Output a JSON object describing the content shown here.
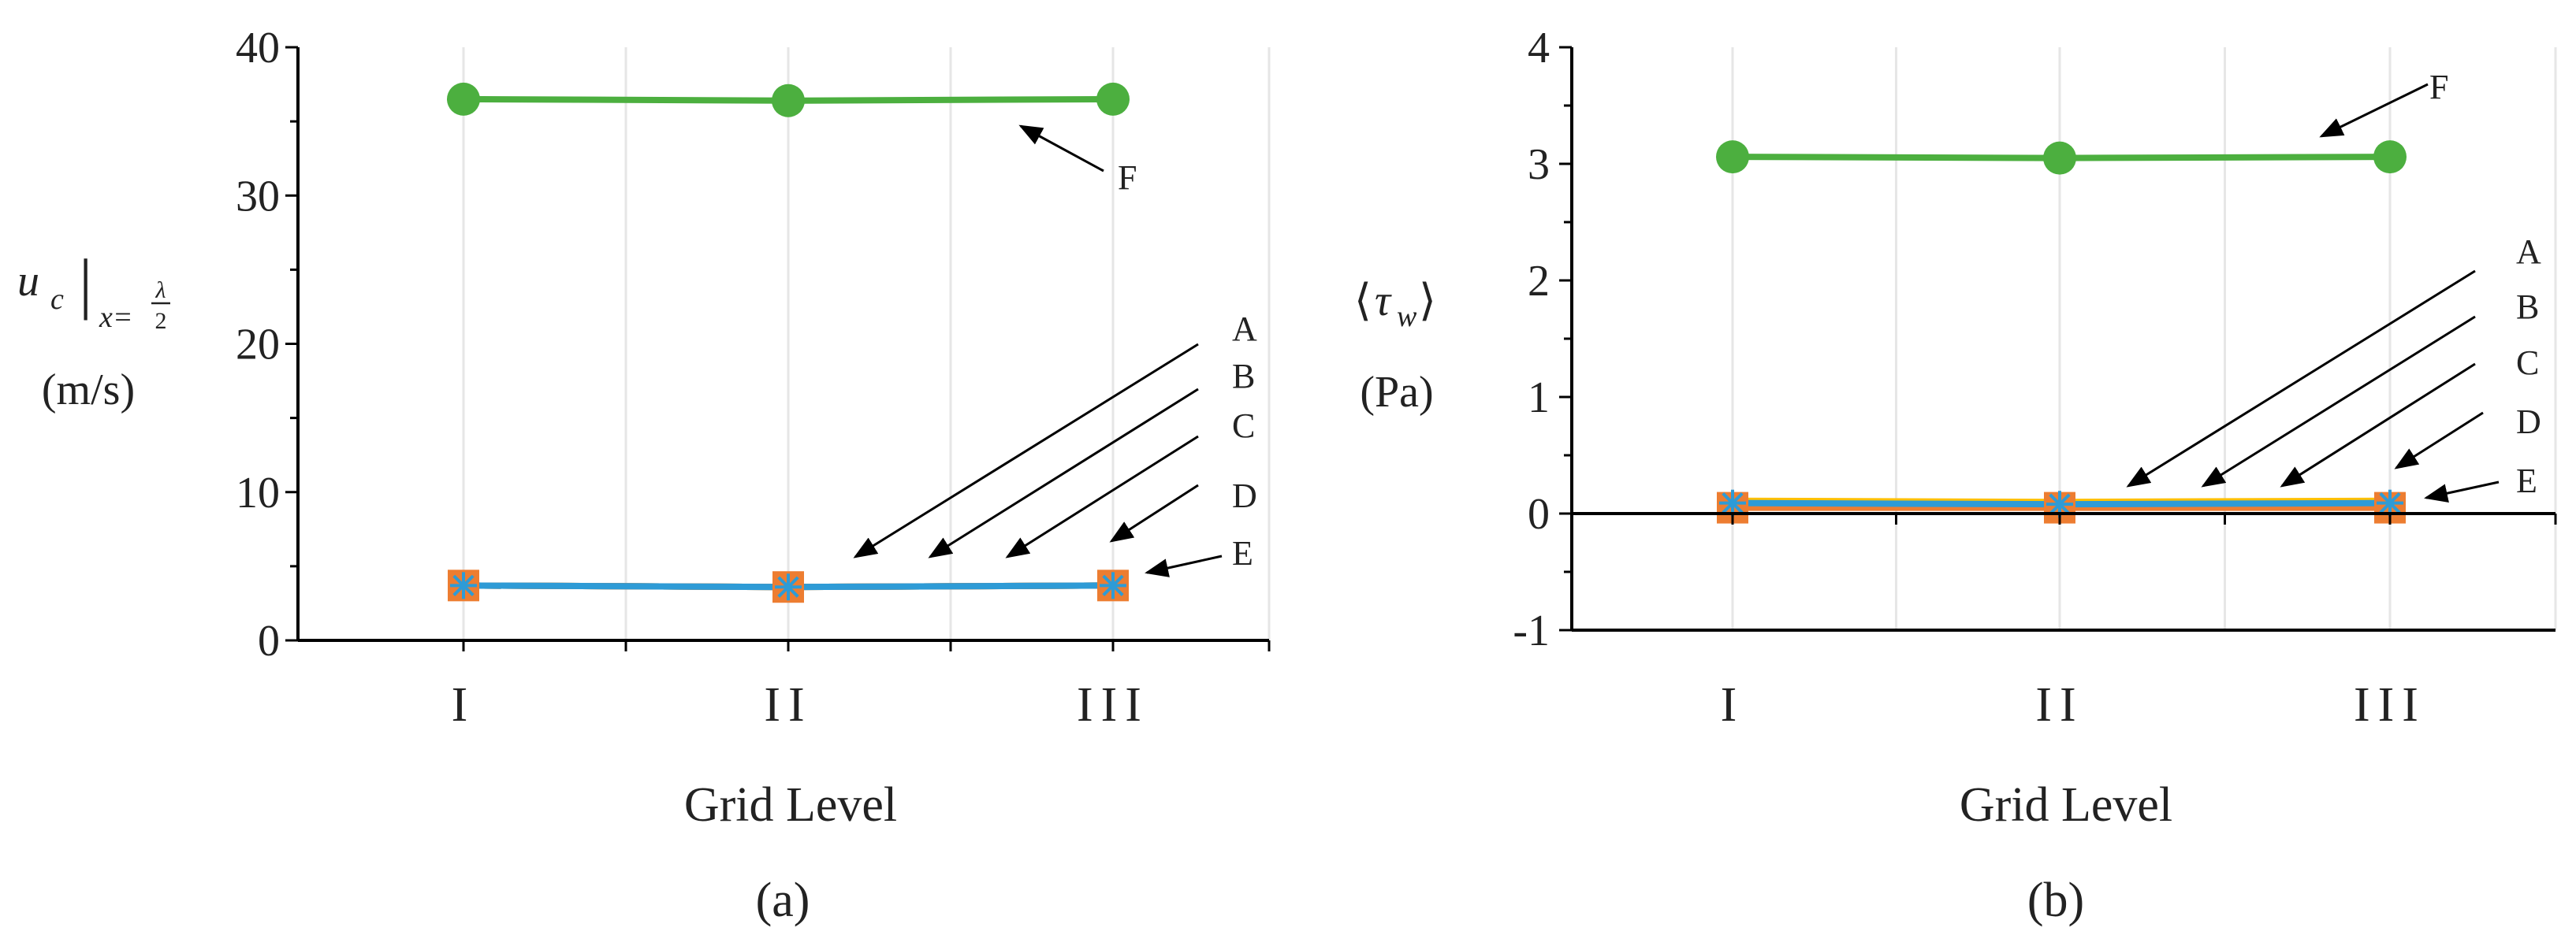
{
  "figure": {
    "panel_a_tag": "(a)",
    "panel_b_tag": "(b)"
  },
  "chart_data": [
    {
      "type": "line",
      "panel": "(a)",
      "categories": [
        "I",
        "II",
        "III"
      ],
      "xlabel": "Grid Level",
      "ylabel": {
        "main": "u",
        "sub_c": "c",
        "bar": "|",
        "sub_x": "x=",
        "frac_num": "λ",
        "frac_den": "2",
        "units": "(m/s)"
      },
      "ylim": [
        0,
        40
      ],
      "yticks": [
        0,
        10,
        20,
        30,
        40
      ],
      "grid": "vertical",
      "series": [
        {
          "name": "A",
          "color": "#4472c4",
          "marker": "none",
          "values": [
            3.7,
            3.6,
            3.7
          ]
        },
        {
          "name": "B",
          "color": "#ffc000",
          "marker": "none",
          "values": [
            3.7,
            3.6,
            3.7
          ]
        },
        {
          "name": "C",
          "color": "#7f7f7f",
          "marker": "none",
          "values": [
            3.7,
            3.6,
            3.7
          ]
        },
        {
          "name": "D",
          "color": "#ed7d31",
          "marker": "square",
          "values": [
            3.7,
            3.6,
            3.7
          ]
        },
        {
          "name": "E",
          "color": "#2e9bd6",
          "marker": "star",
          "values": [
            3.7,
            3.6,
            3.7
          ]
        },
        {
          "name": "F",
          "color": "#4caf3f",
          "marker": "circle",
          "values": [
            36.5,
            36.4,
            36.5
          ]
        }
      ],
      "annotations": [
        "A",
        "B",
        "C",
        "D",
        "E",
        "F"
      ]
    },
    {
      "type": "line",
      "panel": "(b)",
      "categories": [
        "I",
        "II",
        "III"
      ],
      "xlabel": "Grid Level",
      "ylabel": {
        "left": "⟨",
        "main": "τ",
        "sub": "w",
        "right": "⟩",
        "units": "(Pa)"
      },
      "ylim": [
        -1,
        4
      ],
      "yticks": [
        -1,
        0,
        1,
        2,
        3,
        4
      ],
      "grid": "vertical",
      "series": [
        {
          "name": "A",
          "color": "#4472c4",
          "marker": "none",
          "values": [
            0.1,
            0.09,
            0.1
          ]
        },
        {
          "name": "B",
          "color": "#ffc000",
          "marker": "none",
          "values": [
            0.11,
            0.1,
            0.11
          ]
        },
        {
          "name": "C",
          "color": "#7f7f7f",
          "marker": "none",
          "values": [
            0.07,
            0.07,
            0.07
          ]
        },
        {
          "name": "D",
          "color": "#ed7d31",
          "marker": "square",
          "values": [
            0.05,
            0.05,
            0.05
          ]
        },
        {
          "name": "E",
          "color": "#2e9bd6",
          "marker": "star",
          "values": [
            0.09,
            0.08,
            0.09
          ]
        },
        {
          "name": "F",
          "color": "#4caf3f",
          "marker": "circle",
          "values": [
            3.06,
            3.05,
            3.06
          ]
        }
      ],
      "annotations": [
        "A",
        "B",
        "C",
        "D",
        "E",
        "F"
      ]
    }
  ]
}
